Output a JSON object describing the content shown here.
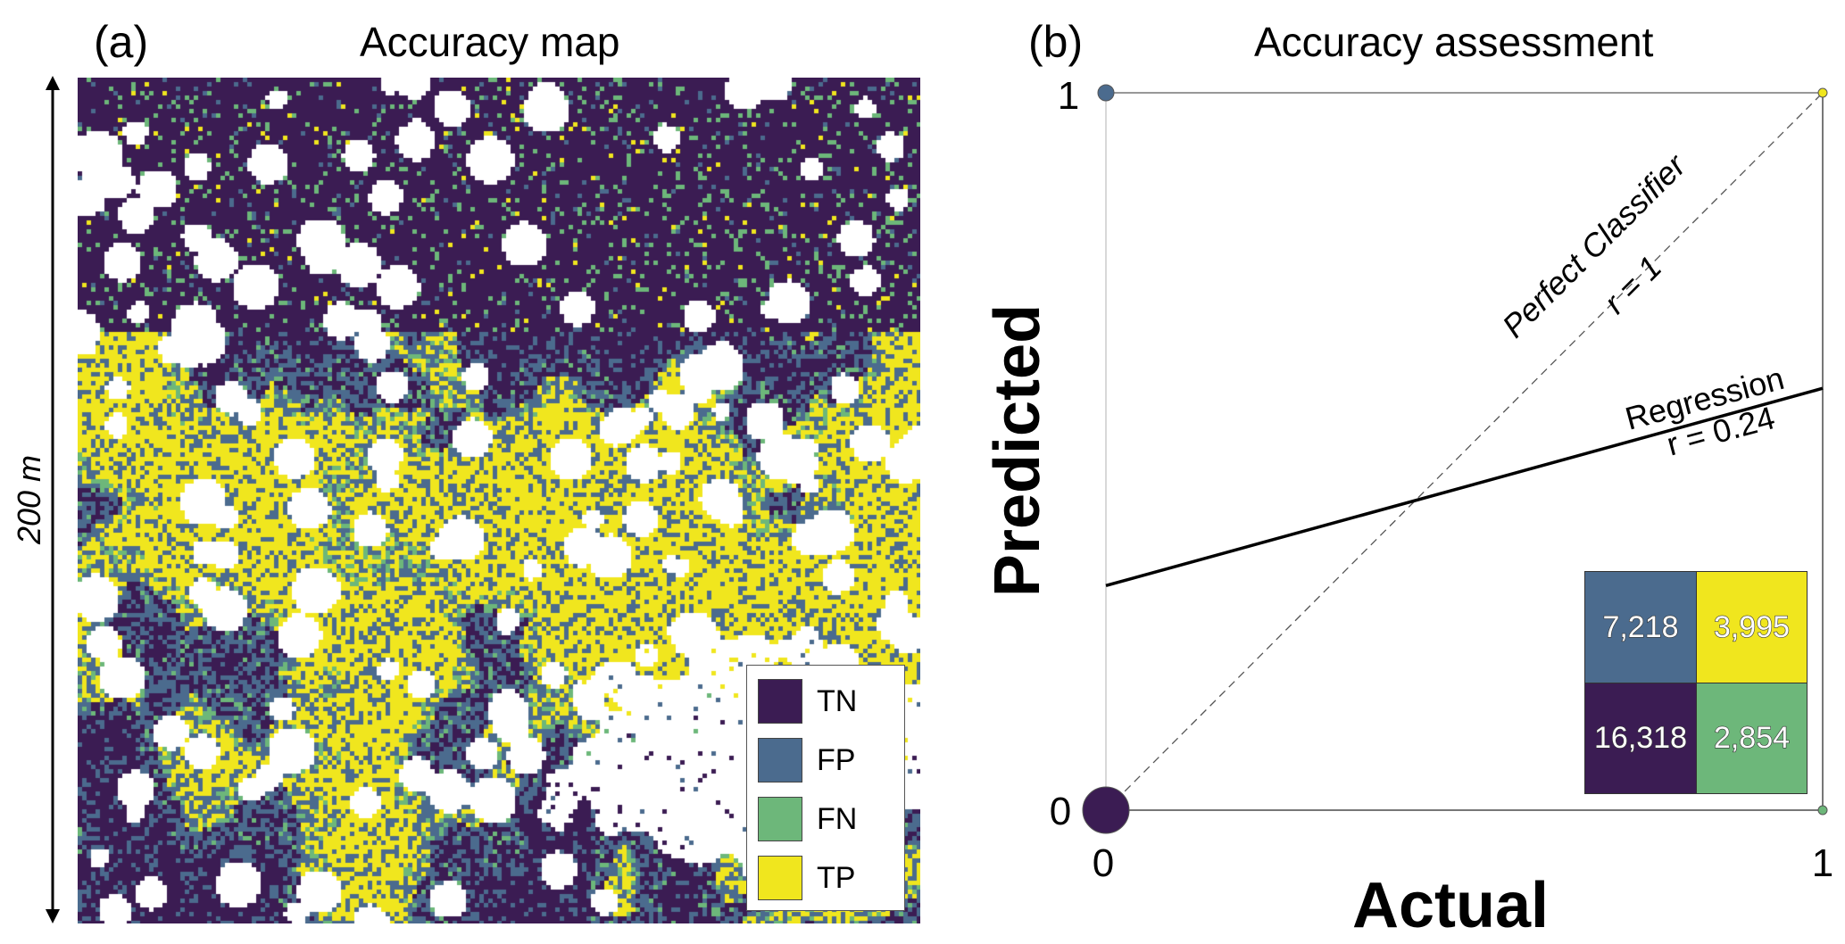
{
  "panel_a": {
    "label": "(a)",
    "title": "Accuracy map",
    "scale_label": "200 m",
    "legend": [
      {
        "label": "TN",
        "color": "#3b1c53"
      },
      {
        "label": "FP",
        "color": "#4b6b8e"
      },
      {
        "label": "FN",
        "color": "#6db77a"
      },
      {
        "label": "TP",
        "color": "#f0e61e"
      }
    ]
  },
  "panel_b": {
    "label": "(b)",
    "title": "Accuracy assessment"
  },
  "chart_data": {
    "type": "scatter",
    "title": "Accuracy assessment",
    "xlabel": "Actual",
    "ylabel": "Predicted",
    "xlim": [
      0,
      1
    ],
    "ylim": [
      0,
      1
    ],
    "x_ticks": [
      "0",
      "1"
    ],
    "y_ticks": [
      "0",
      "1"
    ],
    "points": [
      {
        "x": 0,
        "y": 0,
        "class": "TN",
        "count": 16318,
        "color": "#3b1c53"
      },
      {
        "x": 0,
        "y": 1,
        "class": "FP",
        "count": 7218,
        "color": "#4b6b8e"
      },
      {
        "x": 1,
        "y": 1,
        "class": "TP",
        "count": 3995,
        "color": "#f0e61e"
      },
      {
        "x": 1,
        "y": 0,
        "class": "FN",
        "count": 2854,
        "color": "#6db77a"
      }
    ],
    "lines": [
      {
        "name": "Perfect Classifier",
        "annotation": "r = 1",
        "style": "dashed",
        "x": [
          0,
          1
        ],
        "y": [
          0,
          1
        ]
      },
      {
        "name": "Regression",
        "annotation": "r = 0.24",
        "style": "solid",
        "x": [
          0,
          1
        ],
        "y": [
          0.313,
          0.588
        ]
      }
    ],
    "confusion_matrix": {
      "cells": [
        {
          "label": "7,218",
          "class": "FP",
          "color": "#4b6b8e"
        },
        {
          "label": "3,995",
          "class": "TP",
          "color": "#f0e61e"
        },
        {
          "label": "16,318",
          "class": "TN",
          "color": "#3b1c53"
        },
        {
          "label": "2,854",
          "class": "FN",
          "color": "#6db77a"
        }
      ]
    }
  }
}
